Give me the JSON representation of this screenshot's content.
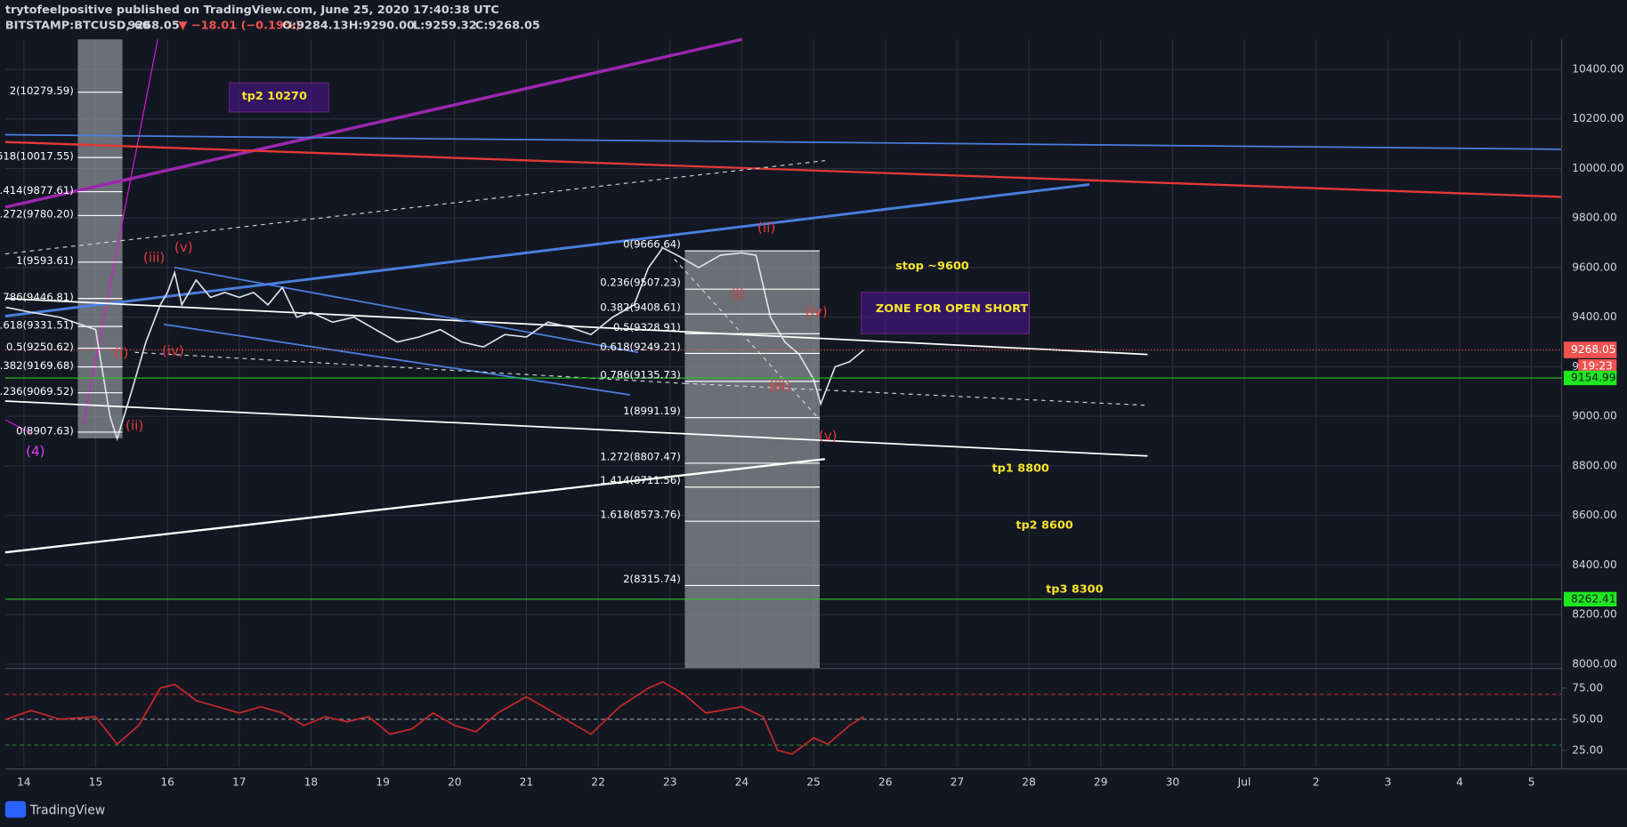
{
  "header": {
    "author_line": "trytofeelpositive published on TradingView.com, June 25, 2020 17:40:38 UTC",
    "symbol": "BITSTAMP:BTCUSD, 60",
    "price": "9268.05",
    "change": "▼ −18.01 (−0.19%)",
    "ohlc": [
      "O:9284.13",
      "H:9290.00",
      "L:9259.32",
      "C:9268.05"
    ]
  },
  "chart_data": {
    "type": "line",
    "xlim": [
      13.74,
      35.42
    ],
    "xticks": [
      14,
      15,
      16,
      17,
      18,
      19,
      20,
      21,
      22,
      23,
      24,
      25,
      26,
      27,
      28,
      29,
      30,
      {
        "value": 31,
        "label": "Jul"
      },
      {
        "value": 32,
        "label": "2"
      },
      {
        "value": 33,
        "label": "3"
      },
      {
        "value": 34,
        "label": "4"
      },
      {
        "value": 35,
        "label": "5"
      }
    ],
    "ylim": [
      7983,
      10521
    ],
    "yticks": [
      {
        "value": 8000,
        "label": "8000.00"
      },
      {
        "value": 8200,
        "label": "8200.00"
      },
      {
        "value": 8400,
        "label": "8400.00"
      },
      {
        "value": 8600,
        "label": "8600.00"
      },
      {
        "value": 8800,
        "label": "8800.00"
      },
      {
        "value": 9000,
        "label": "9000.00"
      },
      {
        "value": 9200,
        "label": "9200.00"
      },
      {
        "value": 9400,
        "label": "9400.00"
      },
      {
        "value": 9600,
        "label": "9600.00"
      },
      {
        "value": 9800,
        "label": "9800.00"
      },
      {
        "value": 10000,
        "label": "10000.00"
      },
      {
        "value": 10200,
        "label": "10200.00"
      },
      {
        "value": 10400,
        "label": "10400.00"
      }
    ],
    "grid": true,
    "series": [
      {
        "name": "BTCUSD",
        "color": "#e0e3eb",
        "x": [
          13.75,
          14.1,
          14.5,
          15.0,
          15.2,
          15.3,
          15.5,
          15.7,
          15.9,
          16.0,
          16.1,
          16.2,
          16.4,
          16.6,
          16.8,
          17.0,
          17.2,
          17.4,
          17.6,
          17.8,
          18.0,
          18.3,
          18.6,
          18.9,
          19.2,
          19.5,
          19.8,
          20.1,
          20.4,
          20.7,
          21.0,
          21.3,
          21.6,
          21.9,
          22.2,
          22.5,
          22.7,
          22.9,
          23.1,
          23.4,
          23.7,
          24.0,
          24.2,
          24.4,
          24.6,
          24.8,
          25.0,
          25.1,
          25.3,
          25.5,
          25.7
        ],
        "values": [
          9440,
          9420,
          9400,
          9350,
          9000,
          8910,
          9100,
          9300,
          9450,
          9500,
          9580,
          9450,
          9550,
          9480,
          9500,
          9480,
          9500,
          9450,
          9520,
          9400,
          9420,
          9380,
          9400,
          9350,
          9300,
          9320,
          9350,
          9300,
          9280,
          9330,
          9320,
          9380,
          9360,
          9330,
          9400,
          9450,
          9600,
          9680,
          9650,
          9600,
          9650,
          9660,
          9650,
          9400,
          9300,
          9250,
          9150,
          9050,
          9200,
          9220,
          9268
        ]
      }
    ],
    "last_price": 9268.05,
    "countdown": "19:23",
    "level_marks": [
      9154.99,
      8262.41
    ],
    "fib_left": [
      "2(10279.59)",
      "618(10017.55)",
      ".414(9877.61)",
      ".272(9780.20)",
      "1(9593.61)",
      "786(9446.81)",
      "0.618(9331.51)",
      "0.5(9250.62)",
      "0.382(9169.68)",
      "0.236(9069.52)",
      "0(8907.63)"
    ],
    "fib_mid": [
      "0(9666.64)",
      "0.236(9507.23)",
      "0.382(9408.61)",
      "0.5(9328.91)",
      "0.618(9249.21)",
      "0.786(9135.73)",
      "1(8991.19)",
      "1.272(8807.47)",
      "1.414(8711.56)",
      "1.618(8573.76)",
      "2(8315.74)"
    ],
    "annotations": [
      "tp2 10270",
      "stop ~9600",
      "ZONE FOR OPEN SHORT",
      "tp1 8800",
      "tp2 8600",
      "tp3 8300"
    ],
    "waves": [
      "(4)",
      "(ii)",
      "(iii)",
      "(v)",
      "(iv)",
      "(i)",
      "(ii)",
      "(i)",
      "(iv)",
      "(iii)",
      "(v)"
    ],
    "rsi": {
      "ylim": [
        11.7,
        88.3
      ],
      "yticks": [
        {
          "value": 25,
          "label": "25.00"
        },
        {
          "value": 50,
          "label": "50.00"
        },
        {
          "value": 75,
          "label": "75.00"
        }
      ],
      "color": "#c62828",
      "x": [
        13.75,
        14.1,
        14.5,
        15.0,
        15.3,
        15.6,
        15.9,
        16.1,
        16.4,
        16.7,
        17.0,
        17.3,
        17.6,
        17.9,
        18.2,
        18.5,
        18.8,
        19.1,
        19.4,
        19.7,
        20.0,
        20.3,
        20.6,
        21.0,
        21.3,
        21.6,
        21.9,
        22.3,
        22.7,
        22.9,
        23.2,
        23.5,
        23.8,
        24.0,
        24.3,
        24.5,
        24.7,
        25.0,
        25.2,
        25.5,
        25.7
      ],
      "values": [
        50,
        57,
        50,
        52,
        30,
        45,
        75,
        78,
        65,
        60,
        55,
        60,
        55,
        45,
        52,
        48,
        52,
        38,
        42,
        55,
        45,
        40,
        55,
        68,
        58,
        48,
        38,
        60,
        75,
        80,
        70,
        55,
        58,
        60,
        52,
        25,
        22,
        35,
        30,
        45,
        52
      ]
    }
  },
  "footer": {
    "brand": "TradingView"
  }
}
